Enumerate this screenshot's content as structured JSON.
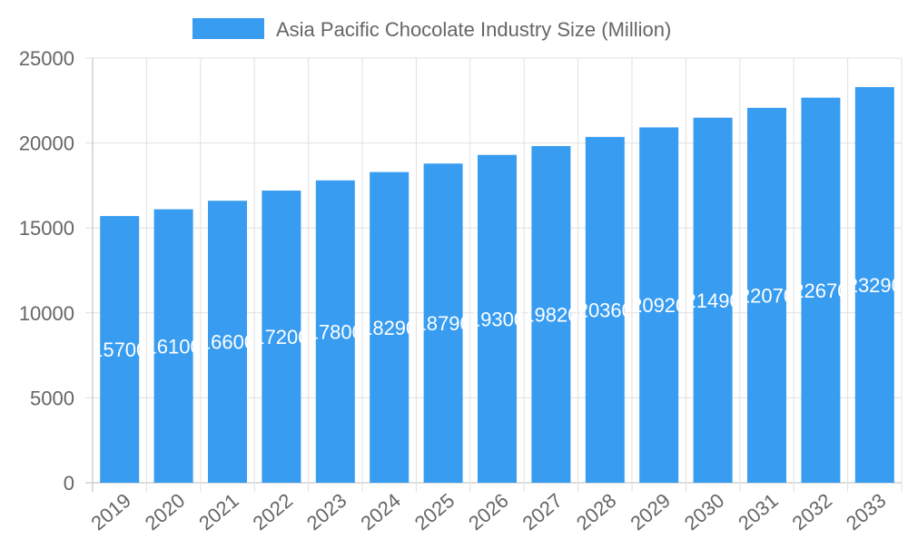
{
  "chart_data": {
    "type": "bar",
    "title": "",
    "xlabel": "",
    "ylabel": "",
    "legend": {
      "position": "top",
      "entries": [
        "Asia Pacific Chocolate Industry Size (Million)"
      ]
    },
    "categories": [
      "2019",
      "2020",
      "2021",
      "2022",
      "2023",
      "2024",
      "2025",
      "2026",
      "2027",
      "2028",
      "2029",
      "2030",
      "2031",
      "2032",
      "2033"
    ],
    "series": [
      {
        "name": "Asia Pacific Chocolate Industry Size (Million)",
        "values": [
          15700,
          16100,
          16600,
          17200,
          17800,
          18290,
          18790,
          19300,
          19820,
          20360,
          20920,
          21490,
          22070,
          22670,
          23290
        ],
        "color": "#389cf0"
      }
    ],
    "ylim": [
      0,
      25000
    ],
    "yticks": [
      "0",
      "5000",
      "10000",
      "15000",
      "20000",
      "25000"
    ],
    "grid": true,
    "data_labels": true
  }
}
